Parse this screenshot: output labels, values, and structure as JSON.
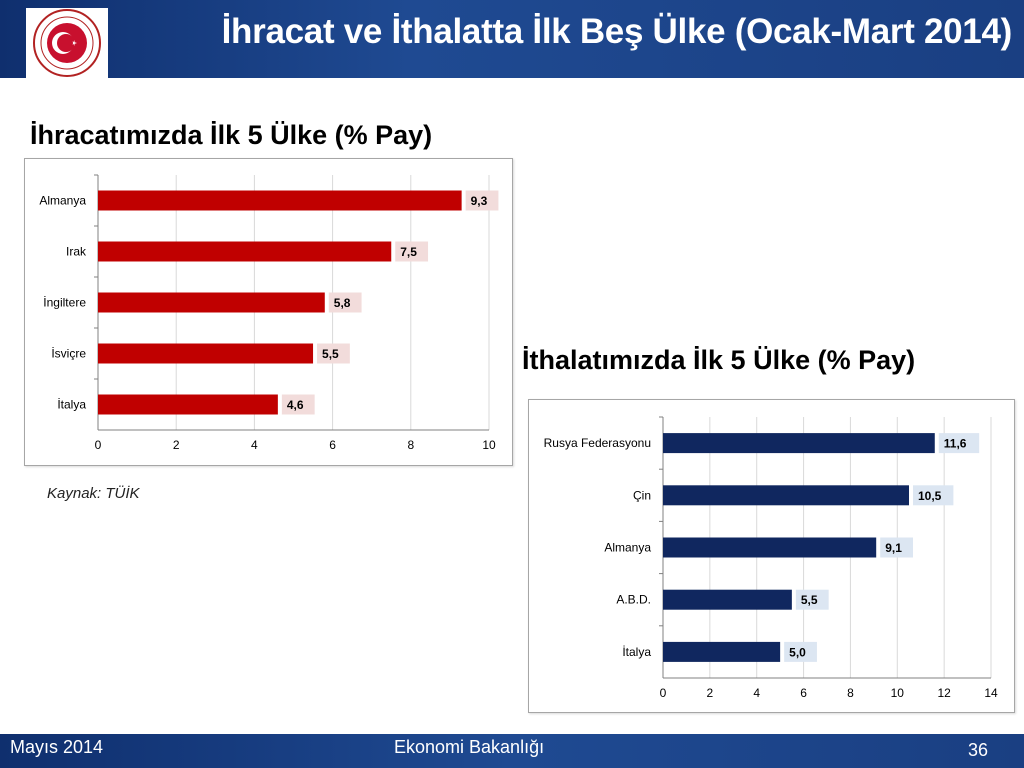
{
  "header": {
    "title": "İhracat ve İthalatta İlk Beş Ülke (Ocak-Mart 2014)"
  },
  "footer": {
    "date": "Mayıs 2014",
    "organization": "Ekonomi Bakanlığı",
    "page_number": "36"
  },
  "source_note": "Kaynak: TÜİK",
  "chart_data": [
    {
      "type": "bar",
      "orientation": "horizontal",
      "title": "İhracatımızda İlk 5 Ülke (% Pay)",
      "categories": [
        "Almanya",
        "Irak",
        "İngiltere",
        "İsviçre",
        "İtalya"
      ],
      "values": [
        9.3,
        7.5,
        5.8,
        5.5,
        4.6
      ],
      "value_labels": [
        "9,3",
        "7,5",
        "5,8",
        "5,5",
        "4,6"
      ],
      "xlim": [
        0,
        10
      ],
      "xticks": [
        0,
        2,
        4,
        6,
        8,
        10
      ],
      "grid": true,
      "bar_color": "#c00000",
      "label_bg": "#f2dcdb"
    },
    {
      "type": "bar",
      "orientation": "horizontal",
      "title": "İthalatımızda İlk 5 Ülke (% Pay)",
      "categories": [
        "Rusya Federasyonu",
        "Çin",
        "Almanya",
        "A.B.D.",
        "İtalya"
      ],
      "values": [
        11.6,
        10.5,
        9.1,
        5.5,
        5.0
      ],
      "value_labels": [
        "11,6",
        "10,5",
        "9,1",
        "5,5",
        "5,0"
      ],
      "xlim": [
        0,
        14
      ],
      "xticks": [
        0,
        2,
        4,
        6,
        8,
        10,
        12,
        14
      ],
      "grid": true,
      "bar_color": "#10275f",
      "label_bg": "#dce6f2"
    }
  ]
}
